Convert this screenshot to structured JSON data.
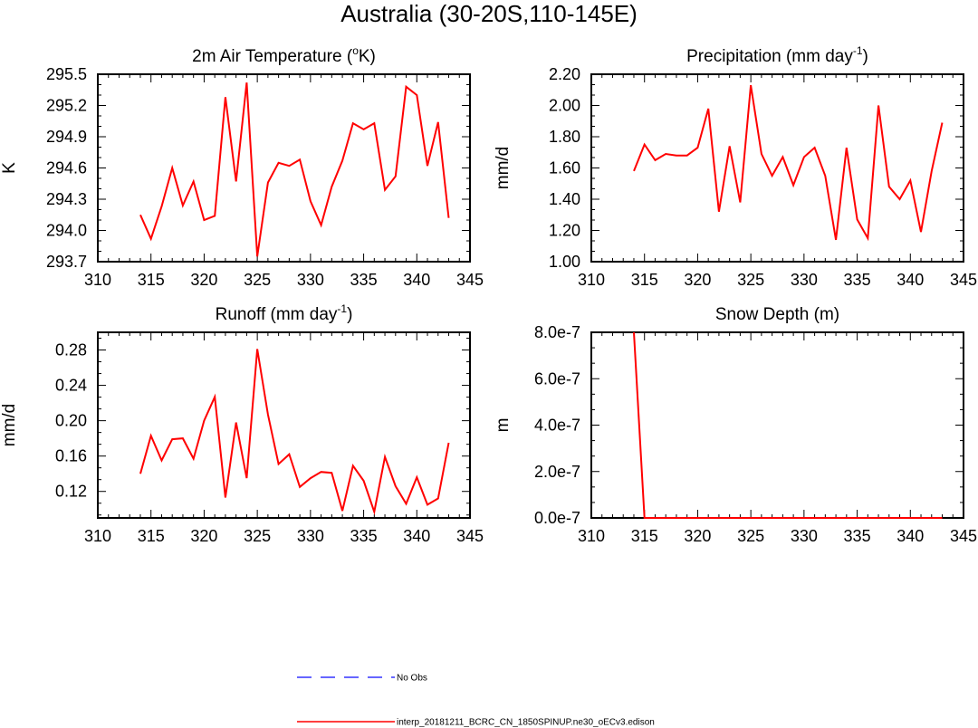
{
  "figure": {
    "title": "Australia (30-20S,110-145E)"
  },
  "chart_data": [
    {
      "type": "line",
      "title": "2m Air Temperature (",
      "title_sup": "o",
      "title_end": "K)",
      "xlabel": "",
      "ylabel": "K",
      "xlim": [
        310,
        345
      ],
      "ylim": [
        293.7,
        295.5
      ],
      "xticks": [
        "310",
        "315",
        "320",
        "325",
        "330",
        "335",
        "340",
        "345"
      ],
      "yticks": [
        "293.7",
        "294.0",
        "294.3",
        "294.6",
        "294.9",
        "295.2",
        "295.5"
      ],
      "series": [
        {
          "color": "#ff0000",
          "x": [
            314,
            315,
            316,
            317,
            318,
            319,
            320,
            321,
            322,
            323,
            324,
            325,
            326,
            327,
            328,
            329,
            330,
            331,
            332,
            333,
            334,
            335,
            336,
            337,
            338,
            339,
            340,
            341,
            342,
            343
          ],
          "values": [
            294.15,
            293.92,
            294.23,
            294.6,
            294.24,
            294.47,
            294.1,
            294.14,
            295.28,
            294.47,
            295.42,
            293.75,
            294.46,
            294.65,
            294.62,
            294.68,
            294.28,
            294.05,
            294.42,
            294.67,
            295.03,
            294.97,
            295.03,
            294.39,
            294.52,
            295.38,
            295.3,
            294.62,
            295.04,
            294.12
          ]
        }
      ]
    },
    {
      "type": "line",
      "title": "Precipitation (mm day",
      "title_sup": "-1",
      "title_end": ")",
      "xlabel": "",
      "ylabel": "mm/d",
      "xlim": [
        310,
        345
      ],
      "ylim": [
        1.0,
        2.2
      ],
      "xticks": [
        "310",
        "315",
        "320",
        "325",
        "330",
        "335",
        "340",
        "345"
      ],
      "yticks": [
        "1.00",
        "1.20",
        "1.40",
        "1.60",
        "1.80",
        "2.00",
        "2.20"
      ],
      "series": [
        {
          "color": "#ff0000",
          "x": [
            314,
            315,
            316,
            317,
            318,
            319,
            320,
            321,
            322,
            323,
            324,
            325,
            326,
            327,
            328,
            329,
            330,
            331,
            332,
            333,
            334,
            335,
            336,
            337,
            338,
            339,
            340,
            341,
            342,
            343
          ],
          "values": [
            1.58,
            1.75,
            1.65,
            1.69,
            1.68,
            1.68,
            1.73,
            1.98,
            1.32,
            1.74,
            1.38,
            2.13,
            1.69,
            1.55,
            1.67,
            1.49,
            1.67,
            1.73,
            1.55,
            1.14,
            1.73,
            1.27,
            1.15,
            2.0,
            1.48,
            1.4,
            1.52,
            1.19,
            1.58,
            1.89
          ]
        }
      ]
    },
    {
      "type": "line",
      "title": "Runoff (mm day",
      "title_sup": "-1",
      "title_end": ")",
      "xlabel": "",
      "ylabel": "mm/d",
      "xlim": [
        310,
        345
      ],
      "ylim": [
        0.09,
        0.3
      ],
      "xticks": [
        "310",
        "315",
        "320",
        "325",
        "330",
        "335",
        "340",
        "345"
      ],
      "yticks": [
        "0.12",
        "0.16",
        "0.20",
        "0.24",
        "0.28"
      ],
      "series": [
        {
          "color": "#ff0000",
          "x": [
            314,
            315,
            316,
            317,
            318,
            319,
            320,
            321,
            322,
            323,
            324,
            325,
            326,
            327,
            328,
            329,
            330,
            331,
            332,
            333,
            334,
            335,
            336,
            337,
            338,
            339,
            340,
            341,
            342,
            343
          ],
          "values": [
            0.14,
            0.183,
            0.155,
            0.179,
            0.18,
            0.157,
            0.2,
            0.227,
            0.113,
            0.198,
            0.135,
            0.281,
            0.207,
            0.151,
            0.162,
            0.125,
            0.135,
            0.142,
            0.141,
            0.098,
            0.149,
            0.132,
            0.097,
            0.159,
            0.126,
            0.106,
            0.136,
            0.105,
            0.112,
            0.175
          ]
        }
      ]
    },
    {
      "type": "line",
      "title": "Snow Depth (m)",
      "title_sup": "",
      "title_end": "",
      "xlabel": "",
      "ylabel": "m",
      "xlim": [
        310,
        345
      ],
      "ylim": [
        0,
        8e-07
      ],
      "xticks": [
        "310",
        "315",
        "320",
        "325",
        "330",
        "335",
        "340",
        "345"
      ],
      "yticks": [
        "0.0e-7",
        "2.0e-7",
        "4.0e-7",
        "6.0e-7",
        "8.0e-7"
      ],
      "series": [
        {
          "color": "#ff0000",
          "x": [
            314,
            315,
            316,
            317,
            318,
            319,
            320,
            321,
            322,
            323,
            324,
            325,
            326,
            327,
            328,
            329,
            330,
            331,
            332,
            333,
            334,
            335,
            336,
            337,
            338,
            339,
            340,
            341,
            342,
            343
          ],
          "values": [
            8e-07,
            0,
            0,
            0,
            0,
            0,
            0,
            0,
            0,
            0,
            0,
            0,
            0,
            0,
            0,
            0,
            0,
            0,
            0,
            0,
            0,
            0,
            0,
            0,
            0,
            0,
            0,
            0,
            0,
            0
          ]
        }
      ]
    }
  ],
  "legend": {
    "placement": "bottom-center",
    "items": [
      {
        "label": "No Obs",
        "color": "#3333ff",
        "style": "dashed"
      },
      {
        "label": "interp_20181211_BCRC_CN_1850SPINUP.ne30_oECv3.edison",
        "color": "#ff0000",
        "style": "solid"
      }
    ]
  }
}
